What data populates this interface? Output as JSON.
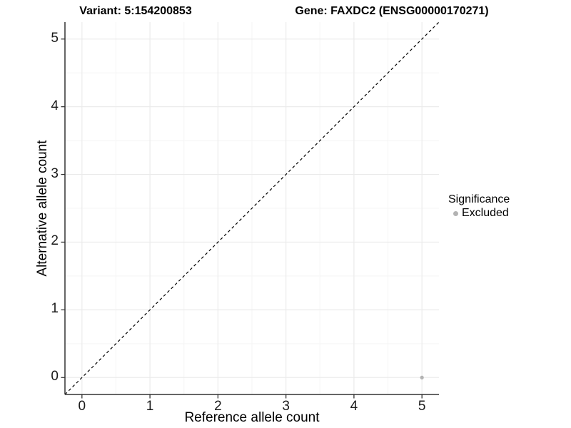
{
  "header": {
    "variant_title": "Variant: 5:154200853",
    "gene_title": "Gene: FAXDC2 (ENSG00000170271)"
  },
  "legend": {
    "title": "Significance",
    "items": [
      {
        "label": "Excluded",
        "color": "#b3b3b3"
      }
    ]
  },
  "chart_data": {
    "type": "scatter",
    "title": "Variant: 5:154200853 | Gene: FAXDC2 (ENSG00000170271)",
    "xlabel": "Reference allele count",
    "ylabel": "Alternative allele count",
    "xlim": [
      -0.25,
      5.25
    ],
    "ylim": [
      -0.25,
      5.25
    ],
    "x_ticks": [
      0,
      1,
      2,
      3,
      4,
      5
    ],
    "y_ticks": [
      0,
      1,
      2,
      3,
      4,
      5
    ],
    "x_minor_ticks": [
      0.5,
      1.5,
      2.5,
      3.5,
      4.5
    ],
    "y_minor_ticks": [
      0.5,
      1.5,
      2.5,
      3.5,
      4.5
    ],
    "grid": "major+minor",
    "legend_position": "right",
    "series": [
      {
        "name": "Excluded",
        "color": "#b3b3b3",
        "marker": "circle",
        "points": [
          {
            "x": 5,
            "y": 0
          }
        ]
      }
    ],
    "reference_line": {
      "kind": "identity y=x",
      "from": [
        -0.25,
        -0.25
      ],
      "to": [
        5.25,
        5.25
      ],
      "style": "dashed",
      "color": "#000000"
    }
  },
  "colors": {
    "background": "#ffffff",
    "title_text": "#000000",
    "axis_text": "#1a1a1a",
    "axis_line": "#333333",
    "grid_major": "#ebebeb",
    "grid_minor": "#f5f5f5",
    "excluded_point": "#b3b3b3"
  }
}
